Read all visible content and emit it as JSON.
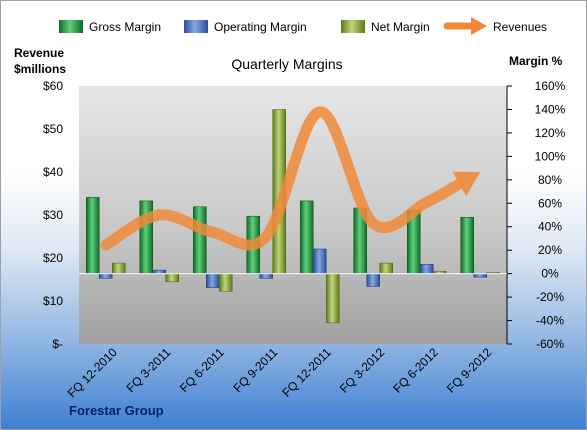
{
  "chart_data": {
    "type": "bar",
    "title": "Quarterly Margins",
    "ylabel_left": [
      "Revenue",
      "$millions"
    ],
    "ylabel_right": "Margin %",
    "source": "Forestar Group",
    "categories": [
      "FQ 12-2010",
      "FQ 3-2011",
      "FQ 6-2011",
      "FQ 9-2011",
      "FQ 12-2011",
      "FQ 3-2012",
      "FQ 6-2012",
      "FQ 9-2012"
    ],
    "series": [
      {
        "name": "Gross Margin",
        "axis": "right",
        "values": [
          65,
          62,
          57,
          49,
          62,
          56,
          54,
          48
        ],
        "color": "#1f8a3a"
      },
      {
        "name": "Operating Margin",
        "axis": "right",
        "values": [
          -4,
          3,
          -12,
          -4,
          21,
          -11,
          8,
          -3
        ],
        "color": "#3f67b8"
      },
      {
        "name": "Net Margin",
        "axis": "right",
        "values": [
          9,
          -7,
          -15,
          140,
          -42,
          9,
          2,
          1
        ],
        "color": "#7f9b2a"
      },
      {
        "name": "Revenues",
        "axis": "left",
        "type": "line",
        "values": [
          23,
          30,
          26,
          25,
          54,
          28,
          33,
          40
        ],
        "color": "#f08a3a"
      }
    ],
    "ylim_left": [
      0,
      60
    ],
    "ylim_right": [
      -60,
      160
    ],
    "yticks_left": [
      "$-",
      "$10",
      "$20",
      "$30",
      "$40",
      "$50",
      "$60"
    ],
    "yticks_right": [
      "-60%",
      "-40%",
      "-20%",
      "0%",
      "20%",
      "40%",
      "60%",
      "80%",
      "100%",
      "120%",
      "140%",
      "160%"
    ],
    "legend_position": "top",
    "grid": false
  }
}
